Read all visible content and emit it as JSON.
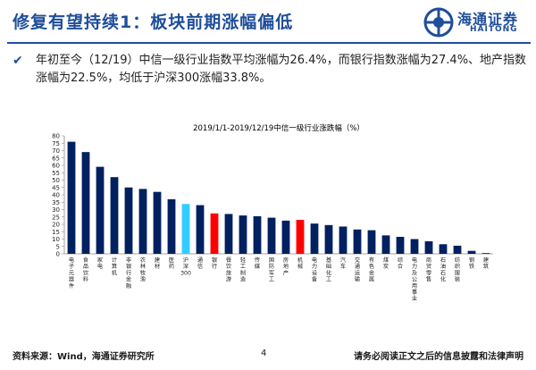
{
  "header": {
    "title": "修复有望持续1：板块前期涨幅偏低",
    "logo_cn": "海通证券",
    "logo_en": "HAITONG"
  },
  "bullet": {
    "text": "年初至今（12/19）中信一级行业指数平均涨幅为26.4%，而银行指数涨幅为27.4%、地产指数涨幅为22.5%，均低于沪深300涨幅33.8%。"
  },
  "footer": {
    "source": "资料来源：Wind，海通证券研究所",
    "page": "4",
    "disclaimer": "请务必阅读正文之后的信息披露和法律声明"
  },
  "chart_data": {
    "type": "bar",
    "title": "2019/1/1-2019/12/19中信一级行业涨跌幅（%）",
    "ylim": [
      0,
      80
    ],
    "yticks": [
      0,
      5,
      10,
      15,
      20,
      25,
      30,
      35,
      40,
      45,
      50,
      55,
      60,
      65,
      70,
      75,
      80
    ],
    "categories": [
      "电子元器件",
      "食品饮料",
      "家电",
      "计算机",
      "非银行金融",
      "农林牧渔",
      "建材",
      "医药",
      "沪深300",
      "通信",
      "银行",
      "餐饮旅游",
      "轻工制造",
      "传媒",
      "国防军工",
      "房地产",
      "机械",
      "电力设备",
      "基础化工",
      "汽车",
      "交通运输",
      "有色金属",
      "煤炭",
      "综合",
      "电力及公用事业",
      "商贸零售",
      "石油石化",
      "纺织服装",
      "钢铁",
      "建筑"
    ],
    "values": [
      76,
      69,
      59,
      52,
      45,
      44,
      42,
      37,
      33.8,
      33,
      27.4,
      27,
      26,
      25.5,
      24.5,
      22.5,
      23,
      20.5,
      19.5,
      18.5,
      16.5,
      16,
      12.5,
      11.5,
      10,
      8.5,
      6.5,
      5.5,
      2,
      0.5
    ],
    "colors": {
      "default": "#002060",
      "hs300": "#33ccff",
      "highlight": "#ff0000"
    },
    "highlight_categories": [
      "银行",
      "机械"
    ],
    "hs300_category": "沪深300"
  },
  "colors": {
    "brand": "#1f4e9a"
  }
}
